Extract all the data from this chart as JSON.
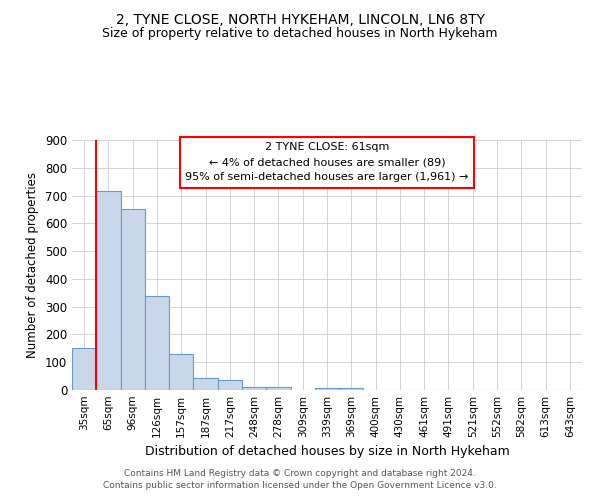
{
  "title": "2, TYNE CLOSE, NORTH HYKEHAM, LINCOLN, LN6 8TY",
  "subtitle": "Size of property relative to detached houses in North Hykeham",
  "xlabel": "Distribution of detached houses by size in North Hykeham",
  "ylabel": "Number of detached properties",
  "categories": [
    "35sqm",
    "65sqm",
    "96sqm",
    "126sqm",
    "157sqm",
    "187sqm",
    "217sqm",
    "248sqm",
    "278sqm",
    "309sqm",
    "339sqm",
    "369sqm",
    "400sqm",
    "430sqm",
    "461sqm",
    "491sqm",
    "521sqm",
    "552sqm",
    "582sqm",
    "613sqm",
    "643sqm"
  ],
  "values": [
    150,
    715,
    650,
    340,
    130,
    42,
    35,
    12,
    10,
    0,
    8,
    8,
    0,
    0,
    0,
    0,
    0,
    0,
    0,
    0,
    0
  ],
  "bar_color": "#c8d8ea",
  "bar_edge_color": "#6699cc",
  "red_line_x": 0.5,
  "ylim": [
    0,
    900
  ],
  "yticks": [
    0,
    100,
    200,
    300,
    400,
    500,
    600,
    700,
    800,
    900
  ],
  "annotation_line1": "2 TYNE CLOSE: 61sqm",
  "annotation_line2": "← 4% of detached houses are smaller (89)",
  "annotation_line3": "95% of semi-detached houses are larger (1,961) →",
  "footer1": "Contains HM Land Registry data © Crown copyright and database right 2024.",
  "footer2": "Contains public sector information licensed under the Open Government Licence v3.0.",
  "background_color": "#ffffff",
  "grid_color": "#cccccc",
  "title_fontsize": 10,
  "subtitle_fontsize": 9
}
